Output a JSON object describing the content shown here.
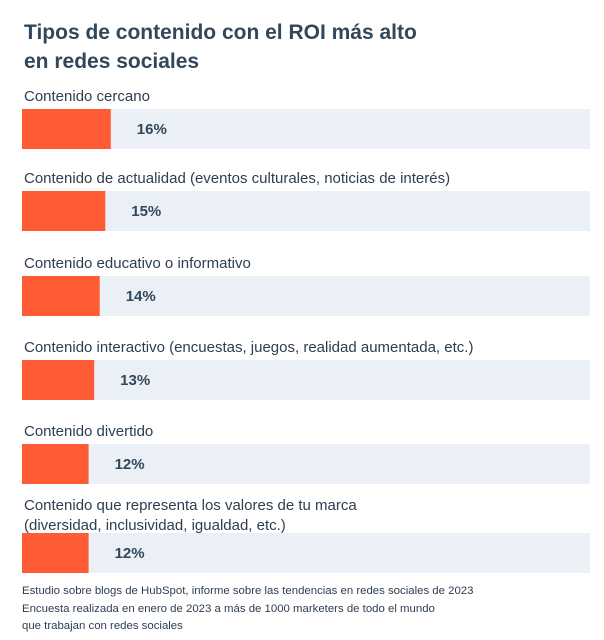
{
  "title_lines": [
    "Tipos de contenido con el ROI más alto",
    "en redes sociales"
  ],
  "footer_lines": [
    "Estudio sobre blogs de HubSpot, informe sobre las tendencias en redes sociales de 2023",
    "Encuesta realizada en enero de 2023 a más de 1000 marketers de todo el mundo",
    "que trabajan con redes sociales"
  ],
  "colors": {
    "bar": "#ff5c35",
    "track": "#eaf0f6",
    "text": "#2d3e50"
  },
  "chart_data": {
    "type": "bar",
    "orientation": "horizontal",
    "title": "Tipos de contenido con el ROI más alto en redes sociales",
    "categories": [
      [
        "Contenido cercano"
      ],
      [
        "Contenido de actualidad (eventos culturales, noticias de interés)"
      ],
      [
        "Contenido educativo o informativo"
      ],
      [
        "Contenido interactivo (encuestas, juegos, realidad aumentada, etc.)"
      ],
      [
        "Contenido divertido"
      ],
      [
        "Contenido que representa los valores de tu marca",
        "(diversidad, inclusividad, igualdad, etc.)"
      ]
    ],
    "values": [
      16,
      15,
      14,
      13,
      12,
      12
    ],
    "value_labels": [
      "16%",
      "15%",
      "14%",
      "13%",
      "12%",
      "12%"
    ],
    "xlim": [
      0,
      100
    ]
  }
}
